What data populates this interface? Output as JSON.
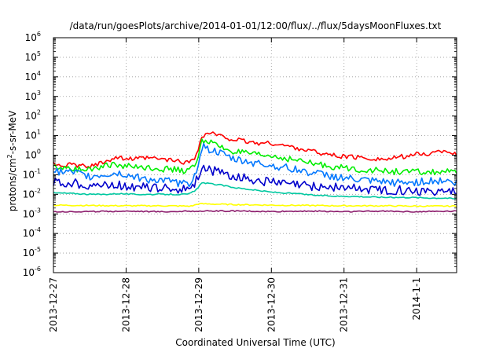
{
  "chart_data": {
    "type": "line",
    "title": "/data/run/goesPlots/archive/2014-01-01/12:00/flux/../flux/5daysMoonFluxes.txt",
    "xlabel": "Coordinated Universal Time (UTC)",
    "ylabel": "protons/cm2-s-sr-MeV",
    "ylabel_base": "protons/cm",
    "ylabel_sup": "2",
    "ylabel_rest": "-s-sr-MeV",
    "y_scale": "log",
    "ylim": [
      1e-06,
      1000000.0
    ],
    "x_unit": "days",
    "xlim": [
      0,
      5.55
    ],
    "grid": true,
    "x_ticks": [
      {
        "v": 0,
        "label": "2013-12-27"
      },
      {
        "v": 1,
        "label": "2013-12-28"
      },
      {
        "v": 2,
        "label": "2013-12-29"
      },
      {
        "v": 3,
        "label": "2013-12-30"
      },
      {
        "v": 4,
        "label": "2013-12-31"
      },
      {
        "v": 5,
        "label": "2014-1-1"
      }
    ],
    "y_ticks": [
      {
        "e": -6,
        "base": "10",
        "exp": "-6"
      },
      {
        "e": -5,
        "base": "10",
        "exp": "-5"
      },
      {
        "e": -4,
        "base": "10",
        "exp": "-4"
      },
      {
        "e": -3,
        "base": "10",
        "exp": "-3"
      },
      {
        "e": -2,
        "base": "10",
        "exp": "-2"
      },
      {
        "e": -1,
        "base": "10",
        "exp": "-1"
      },
      {
        "e": 0,
        "base": "10",
        "exp": "0"
      },
      {
        "e": 1,
        "base": "10",
        "exp": "1"
      },
      {
        "e": 2,
        "base": "10",
        "exp": "2"
      },
      {
        "e": 3,
        "base": "10",
        "exp": "3"
      },
      {
        "e": 4,
        "base": "10",
        "exp": "4"
      },
      {
        "e": 5,
        "base": "10",
        "exp": "5"
      },
      {
        "e": 6,
        "base": "10",
        "exp": "6"
      }
    ],
    "series": [
      {
        "color": "#ff0000",
        "x": [
          0,
          0.3,
          0.5,
          0.7,
          0.9,
          1.1,
          1.3,
          1.5,
          1.7,
          1.85,
          1.95,
          2.05,
          2.15,
          2.3,
          2.5,
          2.8,
          3.0,
          3.3,
          3.6,
          3.9,
          4.1,
          4.3,
          4.6,
          4.9,
          5.2,
          5.4,
          5.5
        ],
        "y": [
          0.35,
          0.3,
          0.25,
          0.5,
          0.8,
          0.6,
          0.7,
          0.6,
          0.5,
          0.4,
          0.8,
          9,
          14,
          9,
          6,
          4,
          4,
          2.5,
          1.5,
          0.9,
          0.8,
          0.7,
          0.6,
          1.0,
          1.2,
          1.8,
          1.2
        ]
      },
      {
        "color": "#00ee00",
        "x": [
          0,
          0.3,
          0.5,
          0.7,
          0.9,
          1.1,
          1.3,
          1.5,
          1.7,
          1.85,
          1.95,
          2.05,
          2.15,
          2.3,
          2.5,
          2.8,
          3.0,
          3.3,
          3.6,
          3.9,
          4.1,
          4.3,
          4.6,
          4.9,
          5.2,
          5.4,
          5.5
        ],
        "y": [
          0.25,
          0.2,
          0.2,
          0.3,
          0.3,
          0.25,
          0.25,
          0.2,
          0.18,
          0.15,
          0.3,
          6,
          5,
          2.5,
          1.5,
          1.0,
          0.9,
          0.6,
          0.35,
          0.25,
          0.2,
          0.18,
          0.15,
          0.14,
          0.13,
          0.15,
          0.12
        ]
      },
      {
        "color": "#0077ff",
        "x": [
          0,
          0.3,
          0.5,
          0.7,
          0.9,
          1.1,
          1.3,
          1.5,
          1.7,
          1.85,
          1.95,
          2.05,
          2.15,
          2.3,
          2.5,
          2.8,
          3.0,
          3.3,
          3.6,
          3.9,
          4.1,
          4.3,
          4.6,
          4.9,
          5.2,
          5.4,
          5.5
        ],
        "y": [
          0.15,
          0.12,
          0.08,
          0.1,
          0.12,
          0.08,
          0.06,
          0.05,
          0.04,
          0.03,
          0.1,
          3,
          2.0,
          1.2,
          0.6,
          0.4,
          0.3,
          0.2,
          0.12,
          0.08,
          0.06,
          0.05,
          0.04,
          0.04,
          0.05,
          0.05,
          0.04
        ]
      },
      {
        "color": "#0000cc",
        "x": [
          0,
          0.3,
          0.5,
          0.7,
          0.9,
          1.1,
          1.3,
          1.5,
          1.7,
          1.85,
          1.95,
          2.05,
          2.15,
          2.3,
          2.5,
          2.8,
          3.0,
          3.3,
          3.6,
          3.9,
          4.1,
          4.3,
          4.6,
          4.9,
          5.2,
          5.4,
          5.5
        ],
        "y": [
          0.04,
          0.035,
          0.03,
          0.028,
          0.03,
          0.025,
          0.022,
          0.02,
          0.019,
          0.018,
          0.04,
          0.25,
          0.18,
          0.12,
          0.08,
          0.05,
          0.04,
          0.03,
          0.024,
          0.022,
          0.02,
          0.018,
          0.017,
          0.016,
          0.015,
          0.015,
          0.014
        ]
      },
      {
        "color": "#00c8a0",
        "x": [
          0,
          0.3,
          0.5,
          0.7,
          0.9,
          1.1,
          1.3,
          1.5,
          1.7,
          1.85,
          1.95,
          2.05,
          2.15,
          2.3,
          2.5,
          2.8,
          3.0,
          3.3,
          3.6,
          3.9,
          4.1,
          4.3,
          4.6,
          4.9,
          5.2,
          5.4,
          5.5
        ],
        "y": [
          0.012,
          0.011,
          0.01,
          0.01,
          0.011,
          0.01,
          0.01,
          0.01,
          0.01,
          0.01,
          0.015,
          0.04,
          0.035,
          0.03,
          0.022,
          0.016,
          0.013,
          0.011,
          0.009,
          0.008,
          0.008,
          0.0075,
          0.007,
          0.007,
          0.0065,
          0.0065,
          0.006
        ]
      },
      {
        "color": "#ffff00",
        "x": [
          0,
          0.5,
          1.0,
          1.5,
          1.9,
          2.0,
          2.5,
          3.0,
          3.5,
          4.0,
          4.5,
          5.0,
          5.5
        ],
        "y": [
          0.0028,
          0.0027,
          0.0026,
          0.0026,
          0.0025,
          0.0033,
          0.003,
          0.0028,
          0.0027,
          0.0026,
          0.0026,
          0.0025,
          0.0025
        ]
      },
      {
        "color": "#8b1a6b",
        "x": [
          0,
          0.5,
          1.0,
          1.5,
          2.0,
          2.5,
          3.0,
          3.5,
          4.0,
          4.5,
          5.0,
          5.5
        ],
        "y": [
          0.0013,
          0.0013,
          0.0014,
          0.0013,
          0.0014,
          0.0014,
          0.0013,
          0.0014,
          0.0013,
          0.0014,
          0.0013,
          0.0014
        ]
      }
    ]
  }
}
